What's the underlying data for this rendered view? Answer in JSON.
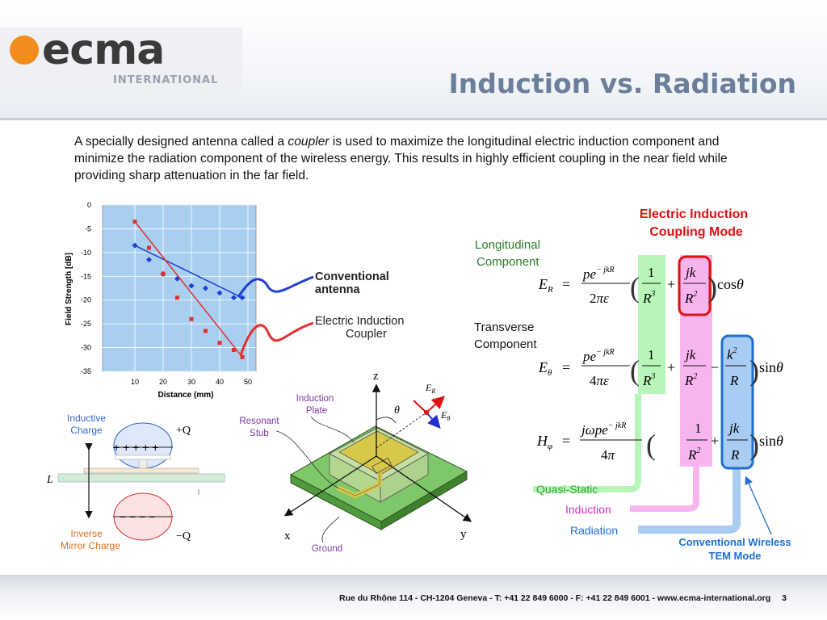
{
  "header": {
    "logo_main": "ecma",
    "logo_sub": "INTERNATIONAL",
    "title": "Induction vs. Radiation"
  },
  "intro": {
    "before": "A specially designed antenna called a ",
    "italic": "coupler",
    "after": " is used to maximize the longitudinal electric induction component and minimize the radiation component of the wireless energy.  This results in highly efficient coupling in the near field while providing sharp attenuation in the far field."
  },
  "chart_data": {
    "type": "line",
    "ylabel": "Field Strength [dB]",
    "xlabel": "Distance (mm)",
    "x_ticks": [
      "10",
      "20",
      "30",
      "40",
      "50"
    ],
    "y_ticks": [
      "0",
      "-5",
      "-10",
      "-15",
      "-20",
      "-25",
      "-30",
      "-35"
    ],
    "ylim": [
      -35,
      0
    ],
    "series": [
      {
        "name": "Conventional antenna",
        "color": "#1e40d8",
        "x": [
          10,
          15,
          20,
          25,
          30,
          35,
          40,
          45,
          48
        ],
        "y": [
          -8.5,
          -11.5,
          -14.5,
          -15.5,
          -17,
          -17.5,
          -18.5,
          -19.5,
          -19.5
        ]
      },
      {
        "name": "Electric Induction Coupler",
        "color": "#e03030",
        "x": [
          10,
          15,
          20,
          25,
          30,
          35,
          40,
          45,
          48
        ],
        "y": [
          -3.5,
          -9,
          -14.5,
          -19.5,
          -24,
          -26.5,
          -29,
          -30.5,
          -32
        ]
      }
    ],
    "legend": [
      "Conventional antenna",
      "Electric Induction Coupler"
    ]
  },
  "charge_diagram": {
    "inductive_label": "Inductive\nCharge",
    "plus_q": "+Q",
    "plus_signs": "+ + + + +",
    "length_label": "L",
    "minus_signs": "− − − −",
    "inverse_label": "Inverse\nMirror Charge",
    "minus_q": "−Q"
  },
  "coupler_diagram": {
    "induction_plate": "Induction\nPlate",
    "resonant_stub": "Resonant\nStub",
    "ground": "Ground",
    "axis_x": "x",
    "axis_y": "y",
    "axis_z": "z",
    "theta": "θ",
    "e_r": "E",
    "e_r_sub": "R",
    "e_theta": "E",
    "e_theta_sub": "θ"
  },
  "equations": {
    "mode_title": "Electric Induction\nCoupling Mode",
    "longitudinal": "Longitudinal\nComponent",
    "transverse": "Transverse\nComponent",
    "quasi_static": "Quasi-Static",
    "induction": "Induction",
    "radiation": "Radiation",
    "conventional": "Conventional Wireless\nTEM Mode",
    "colors": {
      "quasi": "#b8f5b8",
      "induction": "#f7b5ef",
      "radiation": "#a9ccf2",
      "red": "#e01010",
      "blue": "#1e6fd0",
      "green": "#2ea82e",
      "magenta": "#d030c0"
    }
  },
  "footer": {
    "address": "Rue du Rhône 114 - CH-1204 Geneva - T: +41 22 849 6000 - F: +41 22 849 6001 - www.ecma-international.org",
    "page": "3"
  }
}
